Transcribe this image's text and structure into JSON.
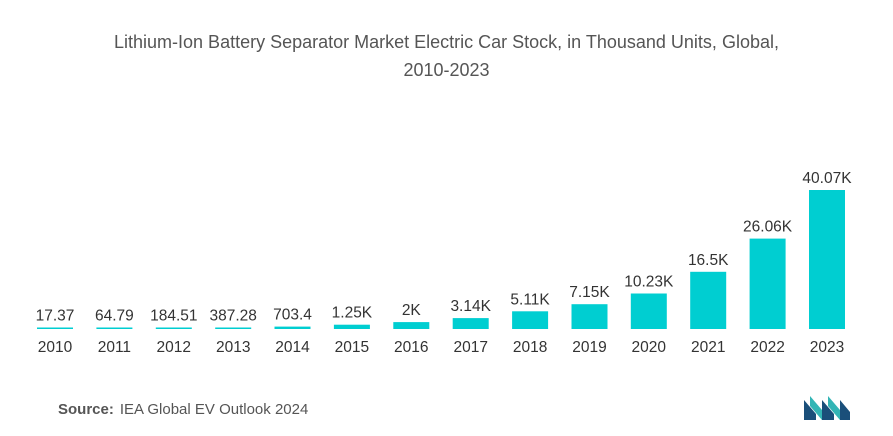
{
  "title_line1": "Lithium-Ion Battery Separator Market Electric Car Stock, in Thousand Units, Global,",
  "title_line2": "2010-2023",
  "source_label": "Source:",
  "source_text": "IEA Global EV Outlook 2024",
  "logo_icon": "mordor-intelligence-logo",
  "chart_data": {
    "type": "bar",
    "title": "Lithium-Ion Battery Separator Market Electric Car Stock, in Thousand Units, Global, 2010-2023",
    "categories": [
      "2010",
      "2011",
      "2012",
      "2013",
      "2014",
      "2015",
      "2016",
      "2017",
      "2018",
      "2019",
      "2020",
      "2021",
      "2022",
      "2023"
    ],
    "values": [
      17.37,
      64.79,
      184.51,
      387.28,
      703.4,
      1250,
      2000,
      3140,
      5110,
      7150,
      10230,
      16500,
      26060,
      40070
    ],
    "data_labels": [
      "17.37",
      "64.79",
      "184.51",
      "387.28",
      "703.4",
      "1.25K",
      "2K",
      "3.14K",
      "5.11K",
      "7.15K",
      "10.23K",
      "16.5K",
      "26.06K",
      "40.07K"
    ],
    "ylim": [
      0,
      40070
    ],
    "xlabel": "",
    "ylabel": "",
    "grid": false,
    "legend": "none",
    "bar_color": "#00CED1"
  }
}
